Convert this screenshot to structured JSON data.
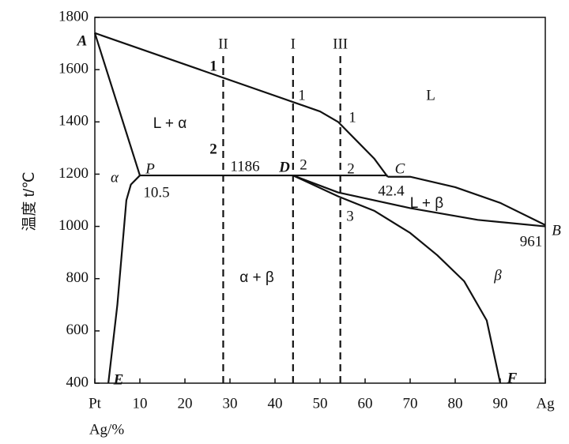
{
  "chart_data": {
    "type": "line",
    "x_label": "Ag/%",
    "y_label": "温度 t/℃",
    "xlim": [
      0,
      100
    ],
    "ylim": [
      400,
      1800
    ],
    "xticks": [
      {
        "value": 0,
        "label": "Pt"
      },
      10,
      20,
      30,
      40,
      50,
      60,
      70,
      80,
      90,
      {
        "value": 100,
        "label": "Ag"
      }
    ],
    "yticks": [
      400,
      600,
      800,
      1000,
      1200,
      1400,
      1600,
      1800
    ],
    "series": [
      {
        "name": "liquidus A-C",
        "color": "#111111",
        "x": [
          0,
          50,
          54,
          58,
          62,
          65
        ],
        "values": [
          1740,
          1440,
          1400,
          1330,
          1260,
          1190
        ]
      },
      {
        "name": "liquidus C-B",
        "color": "#111111",
        "x": [
          65,
          70,
          80,
          90,
          100
        ],
        "values": [
          1190,
          1190,
          1150,
          1090,
          1005
        ]
      },
      {
        "name": "solidus D-B",
        "color": "#111111",
        "x": [
          44,
          54,
          70,
          85,
          100
        ],
        "values": [
          1195,
          1130,
          1070,
          1025,
          1000
        ]
      },
      {
        "name": "solidus A-P",
        "color": "#111111",
        "x": [
          0,
          10
        ],
        "values": [
          1740,
          1195
        ]
      },
      {
        "name": "peritectic P-C",
        "color": "#111111",
        "x": [
          10,
          65
        ],
        "values": [
          1195,
          1195
        ]
      },
      {
        "name": "solvus P-E",
        "color": "#111111",
        "x": [
          10,
          8,
          7,
          5,
          3
        ],
        "values": [
          1195,
          1160,
          1100,
          700,
          400
        ]
      },
      {
        "name": "solvus D-F",
        "color": "#111111",
        "x": [
          44,
          54,
          62,
          70,
          76,
          82,
          87,
          90
        ],
        "values": [
          1195,
          1115,
          1060,
          975,
          890,
          790,
          640,
          400
        ]
      }
    ],
    "guides": [
      {
        "label": "II",
        "x": 28.5,
        "ylim": [
          400,
          1670
        ]
      },
      {
        "label": "I",
        "x": 44,
        "ylim": [
          400,
          1670
        ]
      },
      {
        "label": "III",
        "x": 54.5,
        "ylim": [
          400,
          1670
        ]
      }
    ],
    "annotations": [
      "A",
      "1",
      "1",
      "1",
      "L",
      "L + α",
      "2",
      "α",
      "P",
      "10.5",
      "1186",
      "D",
      "2",
      "2",
      "C",
      "42.4",
      "L + β",
      "3",
      "961",
      "B",
      "α  + β",
      "β",
      "E",
      "F"
    ]
  }
}
